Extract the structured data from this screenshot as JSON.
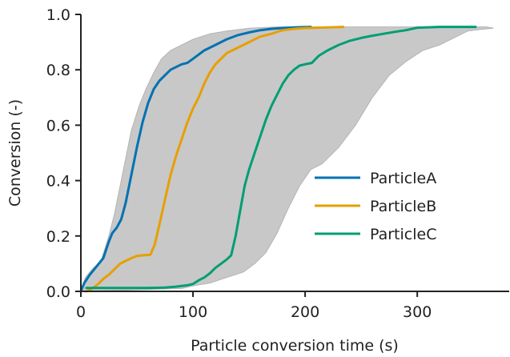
{
  "chart_data": {
    "type": "line",
    "xlabel": "Particle conversion time (s)",
    "ylabel": "Conversion (-)",
    "xlim": [
      0,
      382
    ],
    "ylim": [
      0,
      1.0
    ],
    "xticks": [
      0,
      100,
      200,
      300
    ],
    "xtick_labels": [
      "0",
      "100",
      "200",
      "300"
    ],
    "yticks": [
      0,
      0.2,
      0.4,
      0.6,
      0.8,
      1.0
    ],
    "ytick_labels": [
      "0.0",
      "0.2",
      "0.4",
      "0.6",
      "0.8",
      "1.0"
    ],
    "grid": false,
    "legend": "center-right",
    "band": {
      "color": "#c8c8c8",
      "lower": [
        [
          0,
          0
        ],
        [
          90,
          0.01
        ],
        [
          100,
          0.02
        ],
        [
          115,
          0.03
        ],
        [
          130,
          0.05
        ],
        [
          145,
          0.07
        ],
        [
          155,
          0.1
        ],
        [
          165,
          0.14
        ],
        [
          175,
          0.21
        ],
        [
          185,
          0.3
        ],
        [
          195,
          0.38
        ],
        [
          205,
          0.44
        ],
        [
          215,
          0.46
        ],
        [
          230,
          0.52
        ],
        [
          245,
          0.6
        ],
        [
          260,
          0.7
        ],
        [
          275,
          0.78
        ],
        [
          290,
          0.83
        ],
        [
          305,
          0.87
        ],
        [
          320,
          0.89
        ],
        [
          335,
          0.92
        ],
        [
          345,
          0.94
        ],
        [
          355,
          0.945
        ],
        [
          368,
          0.95
        ]
      ],
      "upper": [
        [
          0,
          0
        ],
        [
          4,
          0.05
        ],
        [
          10,
          0.08
        ],
        [
          18,
          0.11
        ],
        [
          25,
          0.2
        ],
        [
          30,
          0.28
        ],
        [
          35,
          0.38
        ],
        [
          40,
          0.48
        ],
        [
          45,
          0.58
        ],
        [
          52,
          0.67
        ],
        [
          58,
          0.73
        ],
        [
          65,
          0.79
        ],
        [
          72,
          0.84
        ],
        [
          80,
          0.87
        ],
        [
          90,
          0.89
        ],
        [
          100,
          0.91
        ],
        [
          115,
          0.93
        ],
        [
          130,
          0.94
        ],
        [
          150,
          0.95
        ],
        [
          175,
          0.955
        ],
        [
          200,
          0.955
        ],
        [
          260,
          0.955
        ],
        [
          340,
          0.955
        ],
        [
          362,
          0.955
        ],
        [
          368,
          0.95
        ]
      ]
    },
    "series": [
      {
        "name": "ParticleA",
        "color": "#0072b2",
        "points": [
          [
            0,
            0
          ],
          [
            3,
            0.03
          ],
          [
            8,
            0.06
          ],
          [
            14,
            0.09
          ],
          [
            20,
            0.12
          ],
          [
            25,
            0.18
          ],
          [
            28,
            0.21
          ],
          [
            32,
            0.23
          ],
          [
            36,
            0.26
          ],
          [
            40,
            0.32
          ],
          [
            45,
            0.42
          ],
          [
            50,
            0.52
          ],
          [
            55,
            0.61
          ],
          [
            60,
            0.68
          ],
          [
            65,
            0.73
          ],
          [
            70,
            0.76
          ],
          [
            75,
            0.78
          ],
          [
            80,
            0.8
          ],
          [
            85,
            0.81
          ],
          [
            90,
            0.82
          ],
          [
            95,
            0.825
          ],
          [
            100,
            0.84
          ],
          [
            110,
            0.87
          ],
          [
            120,
            0.89
          ],
          [
            130,
            0.91
          ],
          [
            140,
            0.925
          ],
          [
            150,
            0.935
          ],
          [
            160,
            0.943
          ],
          [
            170,
            0.948
          ],
          [
            180,
            0.951
          ],
          [
            190,
            0.953
          ],
          [
            205,
            0.955
          ]
        ]
      },
      {
        "name": "ParticleB",
        "color": "#e69f00",
        "points": [
          [
            5,
            0
          ],
          [
            10,
            0.01
          ],
          [
            15,
            0.025
          ],
          [
            20,
            0.045
          ],
          [
            25,
            0.06
          ],
          [
            30,
            0.08
          ],
          [
            35,
            0.1
          ],
          [
            40,
            0.11
          ],
          [
            45,
            0.12
          ],
          [
            50,
            0.128
          ],
          [
            55,
            0.13
          ],
          [
            62,
            0.132
          ],
          [
            66,
            0.17
          ],
          [
            70,
            0.24
          ],
          [
            75,
            0.33
          ],
          [
            80,
            0.42
          ],
          [
            85,
            0.49
          ],
          [
            90,
            0.55
          ],
          [
            95,
            0.61
          ],
          [
            100,
            0.66
          ],
          [
            105,
            0.7
          ],
          [
            110,
            0.75
          ],
          [
            115,
            0.79
          ],
          [
            120,
            0.82
          ],
          [
            125,
            0.84
          ],
          [
            130,
            0.86
          ],
          [
            135,
            0.87
          ],
          [
            140,
            0.88
          ],
          [
            145,
            0.89
          ],
          [
            150,
            0.9
          ],
          [
            155,
            0.91
          ],
          [
            160,
            0.92
          ],
          [
            165,
            0.925
          ],
          [
            170,
            0.93
          ],
          [
            175,
            0.937
          ],
          [
            180,
            0.943
          ],
          [
            190,
            0.948
          ],
          [
            200,
            0.951
          ],
          [
            210,
            0.952
          ],
          [
            220,
            0.953
          ],
          [
            234,
            0.955
          ]
        ]
      },
      {
        "name": "ParticleC",
        "color": "#009e73",
        "points": [
          [
            5,
            0.012
          ],
          [
            20,
            0.012
          ],
          [
            40,
            0.012
          ],
          [
            60,
            0.012
          ],
          [
            75,
            0.014
          ],
          [
            85,
            0.017
          ],
          [
            95,
            0.022
          ],
          [
            100,
            0.027
          ],
          [
            105,
            0.04
          ],
          [
            110,
            0.05
          ],
          [
            115,
            0.065
          ],
          [
            120,
            0.085
          ],
          [
            125,
            0.1
          ],
          [
            130,
            0.115
          ],
          [
            134,
            0.13
          ],
          [
            138,
            0.2
          ],
          [
            142,
            0.29
          ],
          [
            146,
            0.38
          ],
          [
            150,
            0.44
          ],
          [
            155,
            0.5
          ],
          [
            160,
            0.56
          ],
          [
            165,
            0.62
          ],
          [
            170,
            0.67
          ],
          [
            175,
            0.71
          ],
          [
            180,
            0.75
          ],
          [
            185,
            0.78
          ],
          [
            190,
            0.8
          ],
          [
            195,
            0.815
          ],
          [
            200,
            0.82
          ],
          [
            206,
            0.825
          ],
          [
            212,
            0.85
          ],
          [
            220,
            0.87
          ],
          [
            230,
            0.89
          ],
          [
            240,
            0.905
          ],
          [
            250,
            0.915
          ],
          [
            260,
            0.923
          ],
          [
            270,
            0.93
          ],
          [
            280,
            0.937
          ],
          [
            290,
            0.943
          ],
          [
            300,
            0.952
          ],
          [
            320,
            0.955
          ],
          [
            352,
            0.955
          ]
        ]
      }
    ]
  }
}
